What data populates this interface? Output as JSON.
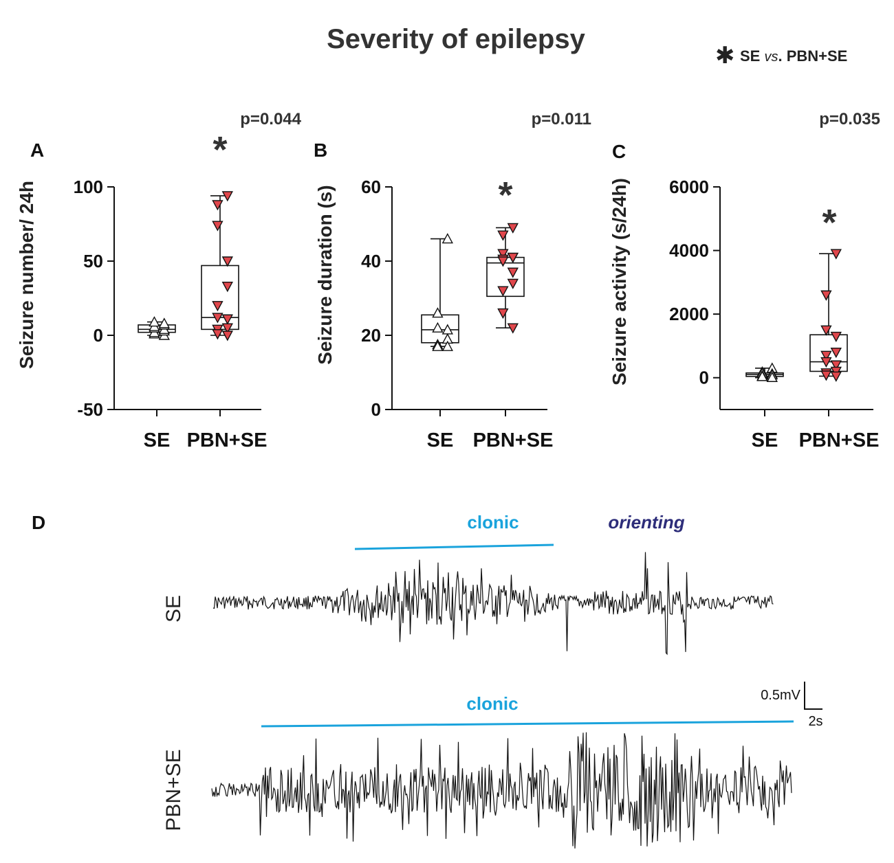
{
  "figure": {
    "title": "Severity of epilepsy",
    "legend_symbol": "✱",
    "legend_text": "SE vs. PBN+SE",
    "legend_parts": [
      "SE ",
      "vs",
      ". PBN+SE"
    ]
  },
  "panels": [
    {
      "label": "A",
      "p_value": "p=0.044",
      "significance": "*"
    },
    {
      "label": "B",
      "p_value": "p=0.011",
      "significance": "*"
    },
    {
      "label": "C",
      "p_value": "p=0.035",
      "significance": "*"
    }
  ],
  "chart_data": [
    {
      "type": "box",
      "panel": "A",
      "ylabel": "Seizure number/ 24h",
      "categories": [
        "SE",
        "PBN+SE"
      ],
      "ylim": [
        -50,
        100
      ],
      "yticks": [
        -50,
        0,
        50,
        100
      ],
      "series": [
        {
          "name": "SE",
          "marker": "open-triangle-up",
          "box": {
            "min": 0,
            "q1": 2,
            "median": 4,
            "q3": 7,
            "max": 9
          },
          "points": [
            0,
            1,
            2,
            3,
            4,
            5,
            6,
            7,
            8,
            9
          ]
        },
        {
          "name": "PBN+SE",
          "marker": "red-triangle-down",
          "box": {
            "min": 0,
            "q1": 4,
            "median": 12,
            "q3": 47,
            "max": 94
          },
          "points": [
            94,
            88,
            74,
            50,
            33,
            20,
            12,
            11,
            5,
            4,
            1,
            0
          ]
        }
      ],
      "annotation": "p=0.044"
    },
    {
      "type": "box",
      "panel": "B",
      "ylabel": "Seizure duration (s)",
      "categories": [
        "SE",
        "PBN+SE"
      ],
      "ylim": [
        0,
        60
      ],
      "yticks": [
        0,
        20,
        40,
        60
      ],
      "series": [
        {
          "name": "SE",
          "marker": "open-triangle-up",
          "box": {
            "min": 17,
            "q1": 18,
            "median": 21.5,
            "q3": 25.5,
            "max": 46
          },
          "points": [
            46,
            26,
            22,
            21.5,
            19,
            17.5,
            17,
            17
          ]
        },
        {
          "name": "PBN+SE",
          "marker": "red-triangle-down",
          "box": {
            "min": 22,
            "q1": 30.5,
            "median": 39.5,
            "q3": 41,
            "max": 49
          },
          "points": [
            49,
            47,
            42,
            41,
            41,
            40.5,
            40,
            37,
            34,
            32,
            26,
            22
          ]
        }
      ],
      "annotation": "p=0.011"
    },
    {
      "type": "box",
      "panel": "C",
      "ylabel": "Seizure activity (s/24h)",
      "categories": [
        "SE",
        "PBN+SE"
      ],
      "ylim": [
        -1000,
        6000
      ],
      "yticks": [
        0,
        2000,
        4000,
        6000
      ],
      "series": [
        {
          "name": "SE",
          "marker": "open-triangle-up",
          "box": {
            "min": 0,
            "q1": 40,
            "median": 100,
            "q3": 150,
            "max": 300
          },
          "points": [
            300,
            180,
            140,
            120,
            90,
            60,
            40,
            10
          ]
        },
        {
          "name": "PBN+SE",
          "marker": "red-triangle-down",
          "box": {
            "min": 50,
            "q1": 200,
            "median": 500,
            "q3": 1350,
            "max": 3900
          },
          "points": [
            3900,
            2600,
            1500,
            1300,
            800,
            700,
            500,
            400,
            200,
            150,
            80,
            50
          ]
        }
      ],
      "annotation": "p=0.035"
    }
  ],
  "panel_d": {
    "label": "D",
    "traces": [
      {
        "name": "SE",
        "annotations": [
          "clonic",
          "orienting"
        ]
      },
      {
        "name": "PBN+SE",
        "annotations": [
          "clonic"
        ]
      }
    ],
    "scale_bar": {
      "voltage": "0.5mV",
      "time": "2s"
    },
    "colors": {
      "clonic": "#1aa3dc",
      "orienting": "#2d2d7a",
      "trace": "#111111"
    }
  }
}
